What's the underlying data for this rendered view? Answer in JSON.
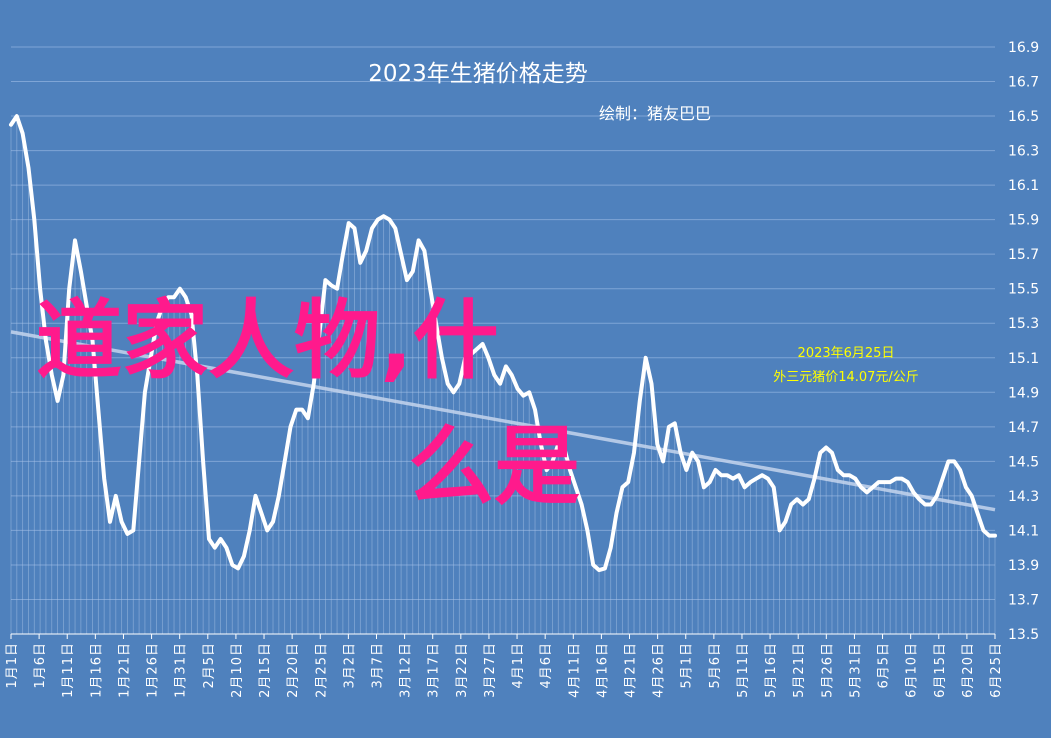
{
  "chart_data": {
    "type": "line",
    "title": "2023年生猪价格走势",
    "subtitle": "绘制：猪友巴巴",
    "annotation": [
      "2023年6月25日",
      "外三元猪价14.07元/公斤"
    ],
    "watermark": [
      "道家人物,什",
      "么是"
    ],
    "xlabel": "",
    "ylabel": "",
    "ylim": [
      13.5,
      16.9
    ],
    "yticks": [
      13.5,
      13.7,
      13.9,
      14.1,
      14.3,
      14.5,
      14.7,
      14.9,
      15.1,
      15.3,
      15.5,
      15.7,
      15.9,
      16.1,
      16.3,
      16.5,
      16.7,
      16.9
    ],
    "xticks": [
      "1月1日",
      "1月6日",
      "1月11日",
      "1月16日",
      "1月21日",
      "1月26日",
      "1月31日",
      "2月5日",
      "2月10日",
      "2月15日",
      "2月20日",
      "2月25日",
      "3月2日",
      "3月7日",
      "3月12日",
      "3月17日",
      "3月22日",
      "3月27日",
      "4月1日",
      "4月6日",
      "4月11日",
      "4月16日",
      "4月21日",
      "4月26日",
      "5月1日",
      "5月6日",
      "5月11日",
      "5月16日",
      "5月21日",
      "5月26日",
      "5月31日",
      "6月5日",
      "6月10日",
      "6月15日",
      "6月20日",
      "6月25日"
    ],
    "grid": true,
    "trendline": {
      "start": 15.25,
      "end": 14.22
    },
    "colors": {
      "background": "#4f81bd",
      "line": "#ffffff",
      "trend": "#c5d5ee",
      "grid": "#7fa5d6",
      "watermark": "#ff1a8c",
      "annotation": "#ffff00"
    },
    "series": [
      {
        "x_start": "1月1日",
        "x_end": "6月25日",
        "values": [
          16.45,
          16.5,
          16.4,
          16.2,
          15.9,
          15.5,
          15.2,
          15.0,
          14.85,
          15.0,
          15.5,
          15.78,
          15.6,
          15.4,
          15.2,
          14.8,
          14.4,
          14.15,
          14.3,
          14.15,
          14.08,
          14.1,
          14.5,
          14.9,
          15.1,
          15.3,
          15.4,
          15.45,
          15.45,
          15.5,
          15.45,
          15.35,
          15.0,
          14.5,
          14.05,
          14.0,
          14.05,
          14.0,
          13.9,
          13.88,
          13.95,
          14.1,
          14.3,
          14.2,
          14.1,
          14.15,
          14.3,
          14.5,
          14.7,
          14.8,
          14.8,
          14.75,
          14.95,
          15.25,
          15.55,
          15.52,
          15.5,
          15.7,
          15.88,
          15.85,
          15.65,
          15.72,
          15.85,
          15.9,
          15.92,
          15.9,
          15.85,
          15.7,
          15.55,
          15.6,
          15.78,
          15.72,
          15.5,
          15.3,
          15.1,
          14.95,
          14.9,
          14.95,
          15.1,
          15.12,
          15.15,
          15.18,
          15.1,
          15.0,
          14.95,
          15.05,
          15.0,
          14.92,
          14.88,
          14.9,
          14.8,
          14.6,
          14.45,
          14.5,
          14.6,
          14.58,
          14.45,
          14.35,
          14.25,
          14.1,
          13.9,
          13.87,
          13.88,
          14.0,
          14.2,
          14.35,
          14.38,
          14.55,
          14.85,
          15.1,
          14.95,
          14.6,
          14.5,
          14.7,
          14.72,
          14.55,
          14.45,
          14.55,
          14.5,
          14.35,
          14.38,
          14.45,
          14.42,
          14.42,
          14.4,
          14.42,
          14.35,
          14.38,
          14.4,
          14.42,
          14.4,
          14.35,
          14.1,
          14.15,
          14.25,
          14.28,
          14.25,
          14.28,
          14.4,
          14.55,
          14.58,
          14.55,
          14.45,
          14.42,
          14.42,
          14.4,
          14.35,
          14.32,
          14.35,
          14.38,
          14.38,
          14.38,
          14.4,
          14.4,
          14.38,
          14.32,
          14.28,
          14.25,
          14.25,
          14.3,
          14.4,
          14.5,
          14.5,
          14.45,
          14.35,
          14.3,
          14.2,
          14.1,
          14.07,
          14.07
        ]
      }
    ]
  }
}
